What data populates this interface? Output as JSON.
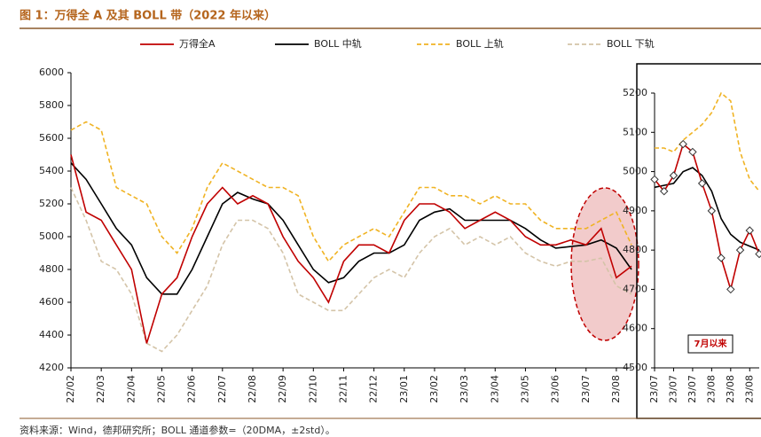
{
  "title": "图 1：万得全 A 及其 BOLL 带（2022 年以来）",
  "source": "资料来源：Wind，德邦研究所；BOLL 通道参数=（20DMA，±2std）。",
  "chart_data": [
    {
      "type": "line",
      "categories": [
        "22/02",
        null,
        "22/03",
        null,
        "22/04",
        null,
        "22/05",
        null,
        "22/06",
        null,
        "22/07",
        null,
        "22/08",
        null,
        "22/09",
        null,
        "22/10",
        null,
        "22/11",
        null,
        "22/12",
        null,
        "23/01",
        null,
        "23/02",
        null,
        "23/03",
        null,
        "23/04",
        null,
        "23/05",
        null,
        "23/06",
        null,
        "23/07",
        null,
        "23/08",
        null
      ],
      "series": [
        {
          "name": "万得全A",
          "color": "#c00000",
          "dash": false,
          "values": [
            5500,
            5150,
            5100,
            4950,
            4800,
            4350,
            4650,
            4750,
            5000,
            5200,
            5300,
            5200,
            5250,
            5200,
            5000,
            4850,
            4750,
            4600,
            4850,
            4950,
            4950,
            4900,
            5100,
            5200,
            5200,
            5150,
            5050,
            5100,
            5150,
            5100,
            5000,
            4950,
            4950,
            4980,
            4950,
            5050,
            4750,
            4820
          ]
        },
        {
          "name": "BOLL 中轨",
          "color": "#000000",
          "dash": false,
          "values": [
            5450,
            5350,
            5200,
            5050,
            4950,
            4750,
            4650,
            4650,
            4800,
            5000,
            5200,
            5270,
            5230,
            5200,
            5100,
            4950,
            4800,
            4720,
            4750,
            4850,
            4900,
            4900,
            4950,
            5100,
            5150,
            5170,
            5100,
            5100,
            5100,
            5100,
            5050,
            4980,
            4930,
            4940,
            4950,
            4980,
            4930,
            4800
          ]
        },
        {
          "name": "BOLL 上轨",
          "color": "#f0b323",
          "dash": true,
          "values": [
            5650,
            5700,
            5650,
            5300,
            5250,
            5200,
            5000,
            4900,
            5050,
            5300,
            5450,
            5400,
            5350,
            5300,
            5300,
            5250,
            5000,
            4850,
            4950,
            5000,
            5050,
            5000,
            5150,
            5300,
            5300,
            5250,
            5250,
            5200,
            5250,
            5200,
            5200,
            5100,
            5050,
            5050,
            5050,
            5100,
            5150,
            4950
          ]
        },
        {
          "name": "BOLL 下轨",
          "color": "#d4c4a8",
          "dash": true,
          "values": [
            5300,
            5100,
            4850,
            4800,
            4650,
            4350,
            4300,
            4400,
            4550,
            4700,
            4950,
            5100,
            5100,
            5050,
            4900,
            4650,
            4600,
            4550,
            4550,
            4650,
            4750,
            4800,
            4750,
            4900,
            5000,
            5050,
            4950,
            5000,
            4950,
            5000,
            4900,
            4850,
            4820,
            4850,
            4850,
            4870,
            4700,
            4650
          ]
        }
      ],
      "ylim": [
        4200,
        6000
      ],
      "yticks": [
        4200,
        4400,
        4600,
        4800,
        5000,
        5200,
        5400,
        5600,
        5800,
        6000
      ],
      "legend": "top"
    },
    {
      "type": "line",
      "categories": [
        "23/07",
        null,
        "23/07",
        null,
        "23/07",
        null,
        "23/08",
        null,
        "23/08",
        null,
        "23/08",
        null
      ],
      "series": [
        {
          "color": "#c00000",
          "dash": false,
          "markers": true,
          "values": [
            4980,
            4950,
            4990,
            5070,
            5050,
            4970,
            4900,
            4780,
            4700,
            4800,
            4850,
            4790
          ]
        },
        {
          "color": "#000000",
          "dash": false,
          "values": [
            4960,
            4965,
            4970,
            5000,
            5010,
            4990,
            4950,
            4880,
            4840,
            4820,
            4810,
            4800
          ]
        },
        {
          "color": "#f0b323",
          "dash": true,
          "values": [
            5060,
            5060,
            5050,
            5080,
            5100,
            5120,
            5150,
            5200,
            5180,
            5050,
            4980,
            4950
          ]
        }
      ],
      "ylim": [
        4500,
        5200
      ],
      "yticks": [
        4500,
        4600,
        4700,
        4800,
        4900,
        5000,
        5100,
        5200
      ],
      "annotation": "7月以来"
    }
  ]
}
